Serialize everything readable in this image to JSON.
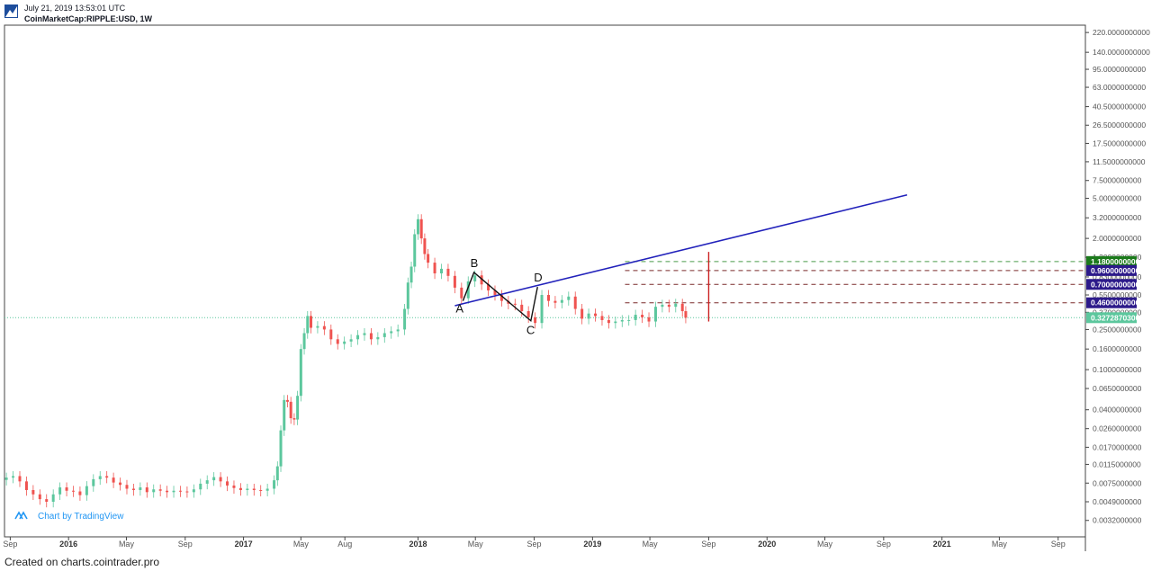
{
  "header": {
    "date": "July 21, 2019 13:53:01 UTC",
    "symbol": "CoinMarketCap:RIPPLE:USD, 1W"
  },
  "footer": {
    "text": "Created on charts.cointrader.pro"
  },
  "watermark": {
    "text": "Chart by TradingView",
    "icon": "tradingview-logo-icon"
  },
  "logo_icon": "cointrader-logo-icon",
  "chart_data": {
    "type": "candlestick",
    "title": "",
    "scale": "log",
    "ylim": [
      0.0022,
      260
    ],
    "xlim": [
      "2015-08-20",
      "2021-10-28"
    ],
    "grid": false,
    "y_ticks": [
      "220.0000000000",
      "140.0000000000",
      "95.0000000000",
      "63.0000000000",
      "40.5000000000",
      "26.5000000000",
      "17.5000000000",
      "11.5000000000",
      "7.5000000000",
      "5.0000000000",
      "3.2000000000",
      "2.0000000000",
      "1.3000000000",
      "0.8300000000",
      "0.5500000000",
      "0.3700000000",
      "0.2500000000",
      "0.1600000000",
      "0.1000000000",
      "0.0650000000",
      "0.0400000000",
      "0.0260000000",
      "0.0170000000",
      "0.0115000000",
      "0.0075000000",
      "0.0049000000",
      "0.0032000000"
    ],
    "x_ticks": [
      {
        "label": "Sep",
        "date": "2015-09-01",
        "bold": false
      },
      {
        "label": "2016",
        "date": "2016-01-01",
        "bold": true
      },
      {
        "label": "May",
        "date": "2016-05-01",
        "bold": false
      },
      {
        "label": "Sep",
        "date": "2016-09-01",
        "bold": false
      },
      {
        "label": "2017",
        "date": "2017-01-01",
        "bold": true
      },
      {
        "label": "May",
        "date": "2017-05-01",
        "bold": false
      },
      {
        "label": "Aug",
        "date": "2017-08-01",
        "bold": false
      },
      {
        "label": "2018",
        "date": "2018-01-01",
        "bold": true
      },
      {
        "label": "May",
        "date": "2018-05-01",
        "bold": false
      },
      {
        "label": "Sep",
        "date": "2018-09-01",
        "bold": false
      },
      {
        "label": "2019",
        "date": "2019-01-01",
        "bold": true
      },
      {
        "label": "May",
        "date": "2019-05-01",
        "bold": false
      },
      {
        "label": "Sep",
        "date": "2019-09-01",
        "bold": false
      },
      {
        "label": "2020",
        "date": "2020-01-01",
        "bold": true
      },
      {
        "label": "May",
        "date": "2020-05-01",
        "bold": false
      },
      {
        "label": "Sep",
        "date": "2020-09-01",
        "bold": false
      },
      {
        "label": "2021",
        "date": "2021-01-01",
        "bold": true
      },
      {
        "label": "May",
        "date": "2021-05-01",
        "bold": false
      },
      {
        "label": "Sep",
        "date": "2021-09-01",
        "bold": false
      }
    ],
    "close_series": [
      [
        "2015-08-24",
        0.0085
      ],
      [
        "2015-09-07",
        0.0088
      ],
      [
        "2015-09-21",
        0.0078
      ],
      [
        "2015-10-05",
        0.0064
      ],
      [
        "2015-10-19",
        0.0058
      ],
      [
        "2015-11-02",
        0.0052
      ],
      [
        "2015-11-16",
        0.0049
      ],
      [
        "2015-11-30",
        0.0058
      ],
      [
        "2015-12-14",
        0.0068
      ],
      [
        "2015-12-28",
        0.0063
      ],
      [
        "2016-01-11",
        0.0062
      ],
      [
        "2016-01-25",
        0.0057
      ],
      [
        "2016-02-08",
        0.007
      ],
      [
        "2016-02-22",
        0.0082
      ],
      [
        "2016-03-07",
        0.0088
      ],
      [
        "2016-03-21",
        0.0085
      ],
      [
        "2016-04-04",
        0.0076
      ],
      [
        "2016-04-18",
        0.0072
      ],
      [
        "2016-05-02",
        0.0066
      ],
      [
        "2016-05-16",
        0.0064
      ],
      [
        "2016-05-30",
        0.0068
      ],
      [
        "2016-06-13",
        0.0061
      ],
      [
        "2016-06-27",
        0.0065
      ],
      [
        "2016-07-11",
        0.0063
      ],
      [
        "2016-07-25",
        0.0061
      ],
      [
        "2016-08-08",
        0.0063
      ],
      [
        "2016-08-22",
        0.0062
      ],
      [
        "2016-09-05",
        0.0061
      ],
      [
        "2016-09-19",
        0.0065
      ],
      [
        "2016-10-03",
        0.0074
      ],
      [
        "2016-10-17",
        0.008
      ],
      [
        "2016-10-31",
        0.0086
      ],
      [
        "2016-11-14",
        0.0078
      ],
      [
        "2016-11-28",
        0.0071
      ],
      [
        "2016-12-12",
        0.0067
      ],
      [
        "2016-12-26",
        0.0064
      ],
      [
        "2017-01-09",
        0.0066
      ],
      [
        "2017-01-23",
        0.0064
      ],
      [
        "2017-02-06",
        0.0063
      ],
      [
        "2017-02-20",
        0.0066
      ],
      [
        "2017-03-06",
        0.008
      ],
      [
        "2017-03-13",
        0.011
      ],
      [
        "2017-03-20",
        0.025
      ],
      [
        "2017-03-27",
        0.05
      ],
      [
        "2017-04-03",
        0.048
      ],
      [
        "2017-04-10",
        0.033
      ],
      [
        "2017-04-17",
        0.032
      ],
      [
        "2017-04-24",
        0.055
      ],
      [
        "2017-05-01",
        0.16
      ],
      [
        "2017-05-08",
        0.23
      ],
      [
        "2017-05-15",
        0.34
      ],
      [
        "2017-05-22",
        0.26
      ],
      [
        "2017-06-05",
        0.27
      ],
      [
        "2017-06-19",
        0.25
      ],
      [
        "2017-07-03",
        0.2
      ],
      [
        "2017-07-17",
        0.18
      ],
      [
        "2017-07-31",
        0.19
      ],
      [
        "2017-08-14",
        0.2
      ],
      [
        "2017-08-28",
        0.22
      ],
      [
        "2017-09-11",
        0.23
      ],
      [
        "2017-09-25",
        0.2
      ],
      [
        "2017-10-09",
        0.21
      ],
      [
        "2017-10-23",
        0.23
      ],
      [
        "2017-11-06",
        0.24
      ],
      [
        "2017-11-20",
        0.25
      ],
      [
        "2017-12-04",
        0.4
      ],
      [
        "2017-12-11",
        0.73
      ],
      [
        "2017-12-18",
        1.05
      ],
      [
        "2017-12-25",
        2.2
      ],
      [
        "2018-01-01",
        3.1
      ],
      [
        "2018-01-08",
        2.0
      ],
      [
        "2018-01-15",
        1.4
      ],
      [
        "2018-01-22",
        1.15
      ],
      [
        "2018-02-05",
        0.9
      ],
      [
        "2018-02-19",
        1.0
      ],
      [
        "2018-03-05",
        0.85
      ],
      [
        "2018-03-19",
        0.65
      ],
      [
        "2018-04-02",
        0.51
      ],
      [
        "2018-04-16",
        0.75
      ],
      [
        "2018-04-30",
        0.86
      ],
      [
        "2018-05-14",
        0.7
      ],
      [
        "2018-05-28",
        0.61
      ],
      [
        "2018-06-11",
        0.55
      ],
      [
        "2018-06-25",
        0.48
      ],
      [
        "2018-07-09",
        0.45
      ],
      [
        "2018-07-23",
        0.44
      ],
      [
        "2018-08-06",
        0.38
      ],
      [
        "2018-08-20",
        0.33
      ],
      [
        "2018-09-03",
        0.29
      ],
      [
        "2018-09-17",
        0.55
      ],
      [
        "2018-10-01",
        0.48
      ],
      [
        "2018-10-15",
        0.46
      ],
      [
        "2018-10-29",
        0.49
      ],
      [
        "2018-11-12",
        0.53
      ],
      [
        "2018-11-26",
        0.4
      ],
      [
        "2018-12-10",
        0.32
      ],
      [
        "2018-12-24",
        0.36
      ],
      [
        "2019-01-07",
        0.34
      ],
      [
        "2019-01-21",
        0.31
      ],
      [
        "2019-02-04",
        0.29
      ],
      [
        "2019-02-18",
        0.3
      ],
      [
        "2019-03-04",
        0.31
      ],
      [
        "2019-03-18",
        0.31
      ],
      [
        "2019-04-01",
        0.35
      ],
      [
        "2019-04-15",
        0.33
      ],
      [
        "2019-04-29",
        0.3
      ],
      [
        "2019-05-13",
        0.42
      ],
      [
        "2019-05-27",
        0.44
      ],
      [
        "2019-06-10",
        0.42
      ],
      [
        "2019-06-24",
        0.45
      ],
      [
        "2019-07-08",
        0.38
      ],
      [
        "2019-07-15",
        0.3273
      ]
    ],
    "horizontal_levels": [
      {
        "value": 1.18,
        "label": "1.1800000000",
        "color": "#1b7a1b",
        "line": "#4a9a4a"
      },
      {
        "value": 0.96,
        "label": "0.9600000000",
        "color": "#2c1a8a",
        "line": "#7a2a2a"
      },
      {
        "value": 0.7,
        "label": "0.7000000000",
        "color": "#2c1a8a",
        "line": "#7a2a2a"
      },
      {
        "value": 0.46,
        "label": "0.4600000000",
        "color": "#2c1a8a",
        "line": "#7a2a2a"
      }
    ],
    "last_price": {
      "value": 0.32728703,
      "label": "0.3272870300",
      "color": "#5cc79d"
    },
    "trendline": {
      "color": "#2222bb",
      "from": [
        "2018-03-19",
        0.43
      ],
      "to": [
        "2020-10-20",
        5.4
      ]
    },
    "vertical_marker": {
      "color": "#cc2222",
      "date": "2019-09-01",
      "from": 0.3,
      "to": 1.47
    },
    "pattern": {
      "color": "#111111",
      "points": [
        {
          "name": "A",
          "date": "2018-04-05",
          "value": 0.48
        },
        {
          "name": "B",
          "date": "2018-04-28",
          "value": 0.92
        },
        {
          "name": "C",
          "date": "2018-08-25",
          "value": 0.305
        },
        {
          "name": "D",
          "date": "2018-09-08",
          "value": 0.66
        }
      ]
    },
    "candle_colors": {
      "up": "#5cc79d",
      "down": "#ef5350"
    }
  }
}
